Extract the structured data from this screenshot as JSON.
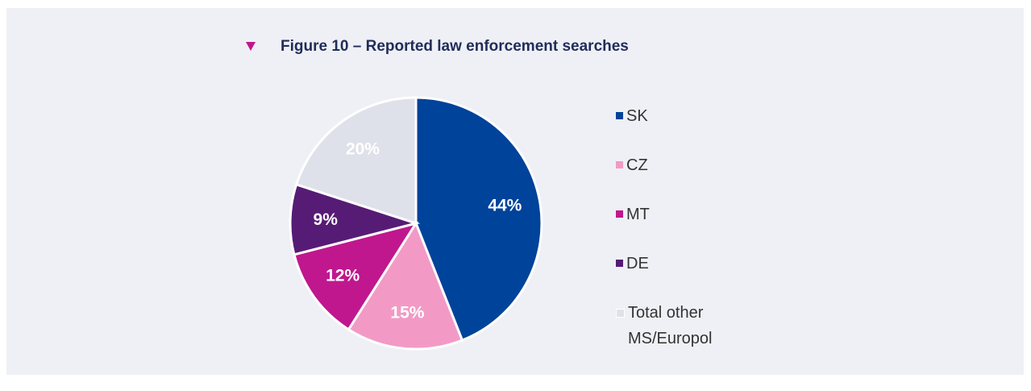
{
  "chart_data": {
    "type": "pie",
    "title": "Figure 10 – Reported law enforcement searches",
    "categories": [
      "SK",
      "CZ",
      "MT",
      "DE",
      "Total other MS/Europol"
    ],
    "values": [
      44,
      15,
      12,
      9,
      20
    ],
    "value_labels": [
      "44%",
      "15%",
      "12%",
      "9%",
      "20%"
    ],
    "colors": [
      "#00439a",
      "#f29ac5",
      "#c0178e",
      "#561c75",
      "#dfe1ea"
    ],
    "legend": "right"
  }
}
